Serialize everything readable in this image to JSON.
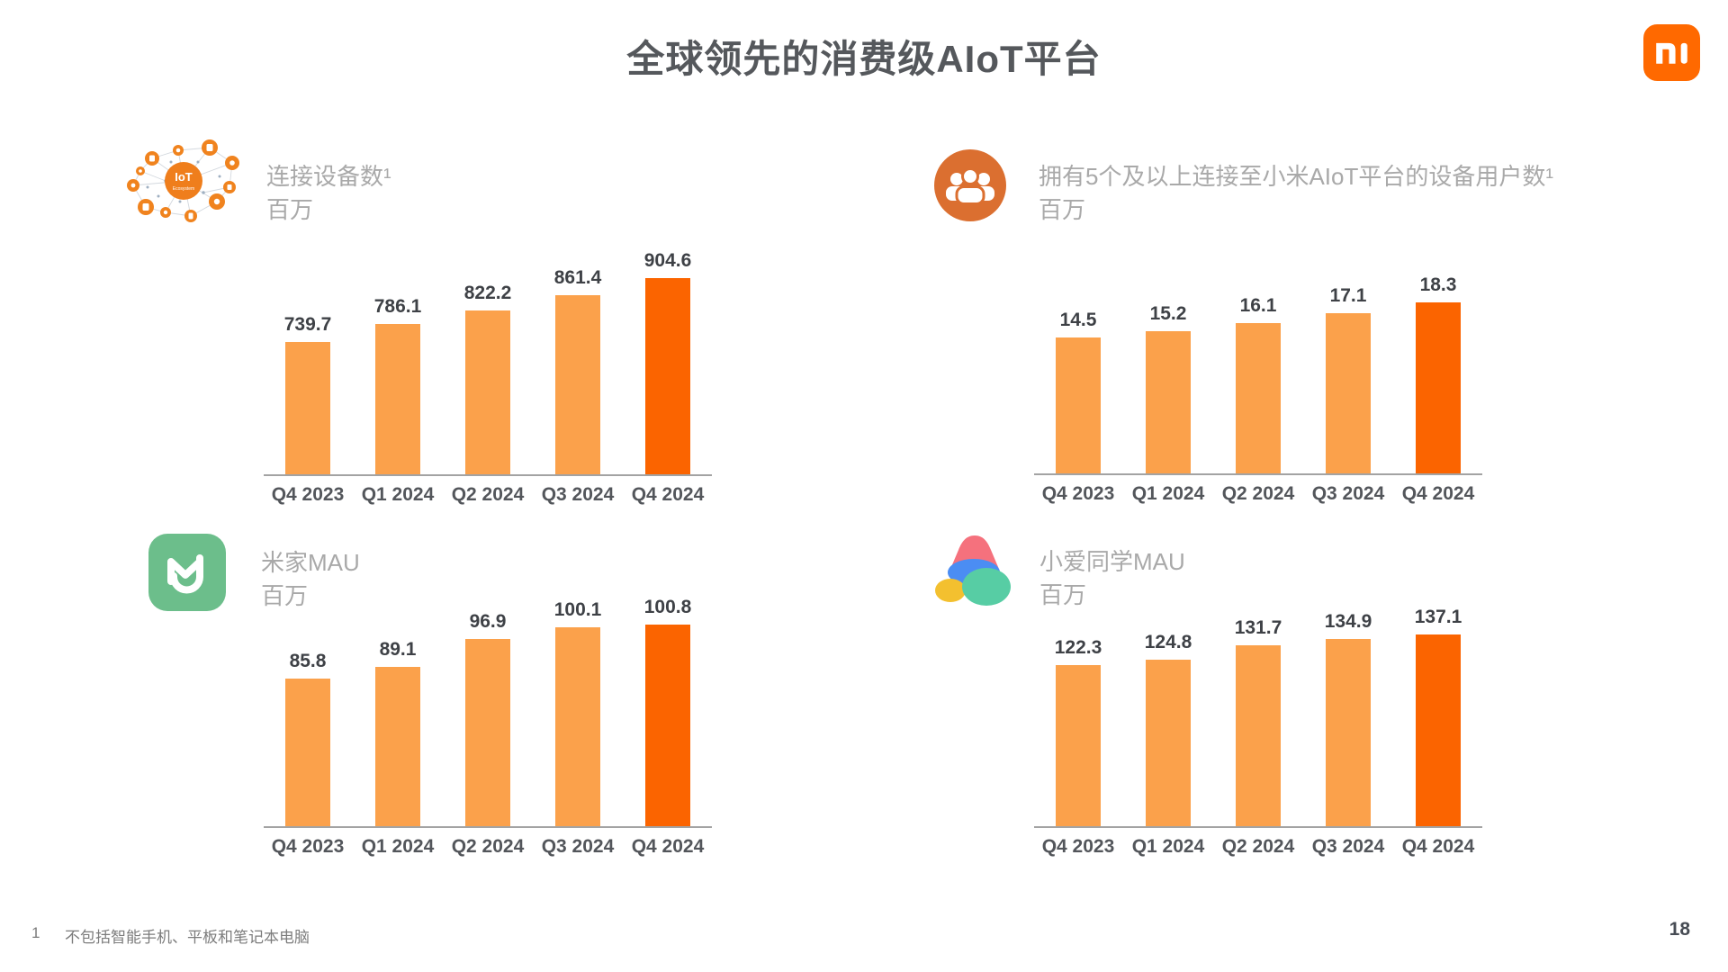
{
  "slide": {
    "title": "全球领先的消费级AIoT平台",
    "page_number": "18",
    "footnote_marker": "1",
    "footnote_text": "不包括智能手机、平板和笔记本电脑",
    "logo_name": "xiaomi-mi-logo"
  },
  "colors": {
    "bar_light": "#FBA14B",
    "bar_highlight": "#FB6400",
    "brand_orange": "#FF6900",
    "axis_gray": "#A3A3A3",
    "header_gray": "#A9A9A9",
    "value_label_dark": "#3E4146",
    "mihome_green": "#6CBE8B",
    "people_icon_orange": "#DB6F30",
    "iot_icon_orange": "#F0831E"
  },
  "chart_data": [
    {
      "type": "bar",
      "title": "连接设备数¹",
      "unit": "百万",
      "icon": "iot-ecosystem-icon",
      "categories": [
        "Q4 2023",
        "Q1 2024",
        "Q2 2024",
        "Q3 2024",
        "Q4 2024"
      ],
      "values": [
        739.7,
        786.1,
        822.2,
        861.4,
        904.6
      ],
      "ylim": [
        400,
        904.6
      ],
      "highlight_index": 4,
      "grid": false,
      "legend": "none"
    },
    {
      "type": "bar",
      "title": "拥有5个及以上连接至小米AIoT平台的设备用户数¹",
      "unit": "百万",
      "icon": "users-group-icon",
      "categories": [
        "Q4 2023",
        "Q1 2024",
        "Q2 2024",
        "Q3 2024",
        "Q4 2024"
      ],
      "values": [
        14.5,
        15.2,
        16.1,
        17.1,
        18.3
      ],
      "ylim": [
        0,
        18.3
      ],
      "highlight_index": 4,
      "grid": false,
      "legend": "none"
    },
    {
      "type": "bar",
      "title": "米家MAU",
      "unit": "百万",
      "icon": "mihome-icon",
      "categories": [
        "Q4 2023",
        "Q1 2024",
        "Q2 2024",
        "Q3 2024",
        "Q4 2024"
      ],
      "values": [
        85.8,
        89.1,
        96.9,
        100.1,
        100.8
      ],
      "ylim": [
        45,
        100.8
      ],
      "highlight_index": 4,
      "grid": false,
      "legend": "none"
    },
    {
      "type": "bar",
      "title": "小爱同学MAU",
      "unit": "百万",
      "icon": "xiaoai-icon",
      "categories": [
        "Q4 2023",
        "Q1 2024",
        "Q2 2024",
        "Q3 2024",
        "Q4 2024"
      ],
      "values": [
        122.3,
        124.8,
        131.7,
        134.9,
        137.1
      ],
      "ylim": [
        45,
        137.1
      ],
      "highlight_index": 4,
      "grid": false,
      "legend": "none"
    }
  ]
}
